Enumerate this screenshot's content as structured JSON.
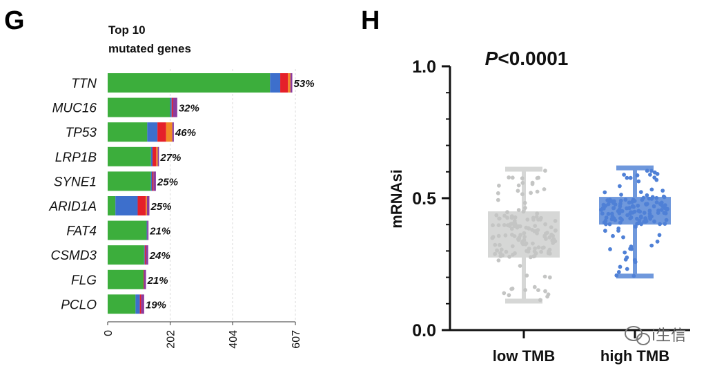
{
  "panels": {
    "left": "G",
    "right": "H"
  },
  "chart_data": [
    {
      "type": "bar",
      "orientation": "horizontal",
      "stacked": true,
      "title": [
        "Top 10",
        "mutated genes"
      ],
      "axis_ticks": [
        "0",
        "202",
        "404",
        "607"
      ],
      "xlim": [
        0,
        607
      ],
      "segment_colors": [
        "#3cae3c",
        "#3d6fcc",
        "#e5202a",
        "#f18a25",
        "#8c3b9e"
      ],
      "categories": [
        "TTN",
        "MUC16",
        "TP53",
        "LRP1B",
        "SYNE1",
        "ARID1A",
        "FAT4",
        "CSMD3",
        "FLG",
        "PCLO"
      ],
      "labels": [
        "53%",
        "32%",
        "46%",
        "27%",
        "25%",
        "25%",
        "21%",
        "24%",
        "21%",
        "19%"
      ],
      "segments": [
        [
          525,
          33,
          25,
          8,
          6
        ],
        [
          202,
          5,
          4,
          0,
          14
        ],
        [
          128,
          33,
          28,
          20,
          5
        ],
        [
          140,
          5,
          12,
          5,
          4
        ],
        [
          140,
          4,
          4,
          0,
          8
        ],
        [
          25,
          72,
          26,
          4,
          8
        ],
        [
          126,
          2,
          0,
          0,
          4
        ],
        [
          118,
          2,
          3,
          0,
          8
        ],
        [
          116,
          0,
          2,
          0,
          6
        ],
        [
          90,
          14,
          4,
          0,
          10
        ]
      ]
    },
    {
      "type": "box",
      "title": "P<0.0001",
      "title_italic": "P",
      "title_rest": "<0.0001",
      "ylabel": "mRNAsi",
      "ylim": [
        0.0,
        1.0
      ],
      "yticks": [
        "0.0",
        "0.5",
        "1.0"
      ],
      "categories": [
        "low TMB",
        "high TMB"
      ],
      "groups": [
        {
          "name": "low TMB",
          "min": 0.11,
          "q1": 0.275,
          "median": 0.35,
          "q3": 0.45,
          "max": 0.61,
          "color": "#d6d7d6",
          "point_color": "#c4c5c4"
        },
        {
          "name": "high TMB",
          "min": 0.205,
          "q1": 0.4,
          "median": 0.45,
          "q3": 0.505,
          "max": 0.615,
          "color": "#6f98dc",
          "point_color": "#4f80d6"
        }
      ]
    }
  ],
  "watermark": {
    "text": "i生信"
  }
}
